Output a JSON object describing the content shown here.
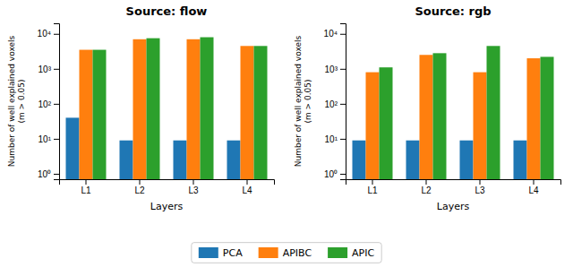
{
  "chart_data": [
    {
      "type": "bar",
      "title": "Source: flow",
      "xlabel": "Layers",
      "ylabel": "Number of well explained voxels\n(m > 0.05)",
      "categories": [
        "L1",
        "L2",
        "L3",
        "L4"
      ],
      "series": [
        {
          "name": "PCA",
          "color": "#1f77b4",
          "values": [
            40,
            9,
            9,
            9
          ]
        },
        {
          "name": "APIBC",
          "color": "#ff7f0e",
          "values": [
            3500,
            7000,
            7000,
            4500
          ]
        },
        {
          "name": "APIC",
          "color": "#2ca02c",
          "values": [
            3500,
            7500,
            8000,
            4500
          ]
        }
      ],
      "log": "y",
      "ylim": [
        0.7,
        20000
      ],
      "yticks": [
        {
          "value": 1,
          "label": "10⁰"
        },
        {
          "value": 10,
          "label": "10¹"
        },
        {
          "value": 100,
          "label": "10²"
        },
        {
          "value": 1000,
          "label": "10³"
        },
        {
          "value": 10000,
          "label": "10⁴"
        }
      ],
      "legend": "bottom"
    },
    {
      "type": "bar",
      "title": "Source: rgb",
      "xlabel": "Layers",
      "ylabel": "Number of well explained voxels\n(m > 0.05)",
      "categories": [
        "L1",
        "L2",
        "L3",
        "L4"
      ],
      "series": [
        {
          "name": "PCA",
          "color": "#1f77b4",
          "values": [
            9,
            9,
            9,
            9
          ]
        },
        {
          "name": "APIBC",
          "color": "#ff7f0e",
          "values": [
            800,
            2500,
            800,
            2000
          ]
        },
        {
          "name": "APIC",
          "color": "#2ca02c",
          "values": [
            1100,
            2800,
            4500,
            2200
          ]
        }
      ],
      "log": "y",
      "ylim": [
        0.7,
        20000
      ],
      "yticks": [
        {
          "value": 1,
          "label": "10⁰"
        },
        {
          "value": 10,
          "label": "10¹"
        },
        {
          "value": 100,
          "label": "10²"
        },
        {
          "value": 1000,
          "label": "10³"
        },
        {
          "value": 10000,
          "label": "10⁴"
        }
      ]
    }
  ]
}
